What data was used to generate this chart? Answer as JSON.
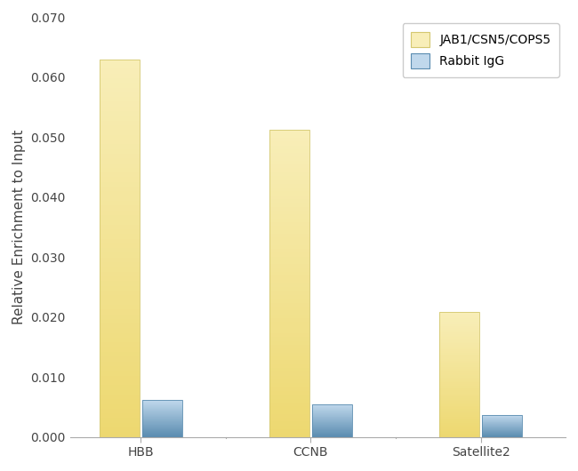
{
  "categories": [
    "HBB",
    "CCNB",
    "Satellite2"
  ],
  "jab1_values": [
    0.063,
    0.0512,
    0.0208
  ],
  "igg_values": [
    0.0062,
    0.0055,
    0.0037
  ],
  "jab1_color": "#F5E8A0",
  "jab1_edge": "#D4C870",
  "igg_color_top": "#C0D8EC",
  "igg_color_bottom": "#5A8CB0",
  "igg_edge": "#5A8CB0",
  "ylabel": "Relative Enrichment to Input",
  "ylim": [
    0,
    0.07
  ],
  "yticks": [
    0.0,
    0.01,
    0.02,
    0.03,
    0.04,
    0.05,
    0.06,
    0.07
  ],
  "legend_labels": [
    "JAB1/CSN5/COPS5",
    "Rabbit IgG"
  ],
  "bar_width": 0.28,
  "background_color": "#ffffff",
  "plot_bg_color": "#ffffff",
  "tick_fontsize": 10,
  "label_fontsize": 11,
  "legend_fontsize": 10
}
